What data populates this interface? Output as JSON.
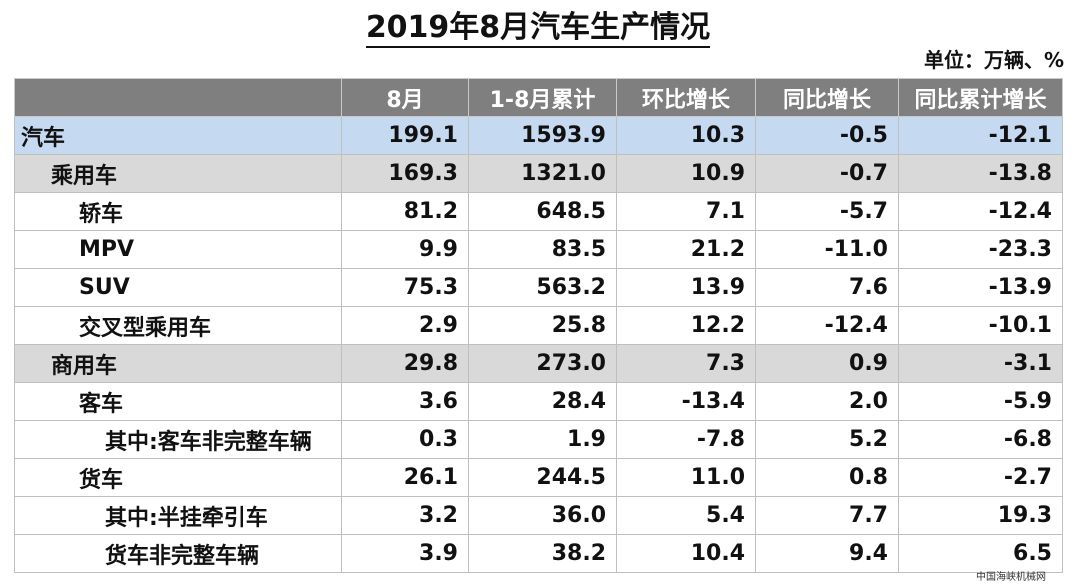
{
  "title": "2019年8月汽车生产情况",
  "unit": "单位：万辆、%",
  "columns": [
    "",
    "8月",
    "1-8月累计",
    "环比增长",
    "同比增长",
    "同比累计增长"
  ],
  "rows": [
    {
      "name": "汽车",
      "level": "top",
      "values": [
        "199.1",
        "1593.9",
        "10.3",
        "-0.5",
        "-12.1"
      ]
    },
    {
      "name": "乘用车",
      "level": "1",
      "values": [
        "169.3",
        "1321.0",
        "10.9",
        "-0.7",
        "-13.8"
      ]
    },
    {
      "name": "轿车",
      "level": "2",
      "values": [
        "81.2",
        "648.5",
        "7.1",
        "-5.7",
        "-12.4"
      ]
    },
    {
      "name": "MPV",
      "level": "2",
      "values": [
        "9.9",
        "83.5",
        "21.2",
        "-11.0",
        "-23.3"
      ]
    },
    {
      "name": "SUV",
      "level": "2",
      "values": [
        "75.3",
        "563.2",
        "13.9",
        "7.6",
        "-13.9"
      ]
    },
    {
      "name": "交叉型乘用车",
      "level": "2",
      "values": [
        "2.9",
        "25.8",
        "12.2",
        "-12.4",
        "-10.1"
      ]
    },
    {
      "name": "商用车",
      "level": "1",
      "values": [
        "29.8",
        "273.0",
        "7.3",
        "0.9",
        "-3.1"
      ]
    },
    {
      "name": "客车",
      "level": "2",
      "values": [
        "3.6",
        "28.4",
        "-13.4",
        "2.0",
        "-5.9"
      ]
    },
    {
      "name": "其中:客车非完整车辆",
      "level": "3",
      "values": [
        "0.3",
        "1.9",
        "-7.8",
        "5.2",
        "-6.8"
      ]
    },
    {
      "name": "货车",
      "level": "2",
      "values": [
        "26.1",
        "244.5",
        "11.0",
        "0.8",
        "-2.7"
      ]
    },
    {
      "name": "其中:半挂牵引车",
      "level": "3",
      "values": [
        "3.2",
        "36.0",
        "5.4",
        "7.7",
        "19.3"
      ]
    },
    {
      "name": "货车非完整车辆",
      "level": "3",
      "values": [
        "3.9",
        "38.2",
        "10.4",
        "9.4",
        "6.5"
      ]
    }
  ],
  "watermark": "中国海峡机械网"
}
